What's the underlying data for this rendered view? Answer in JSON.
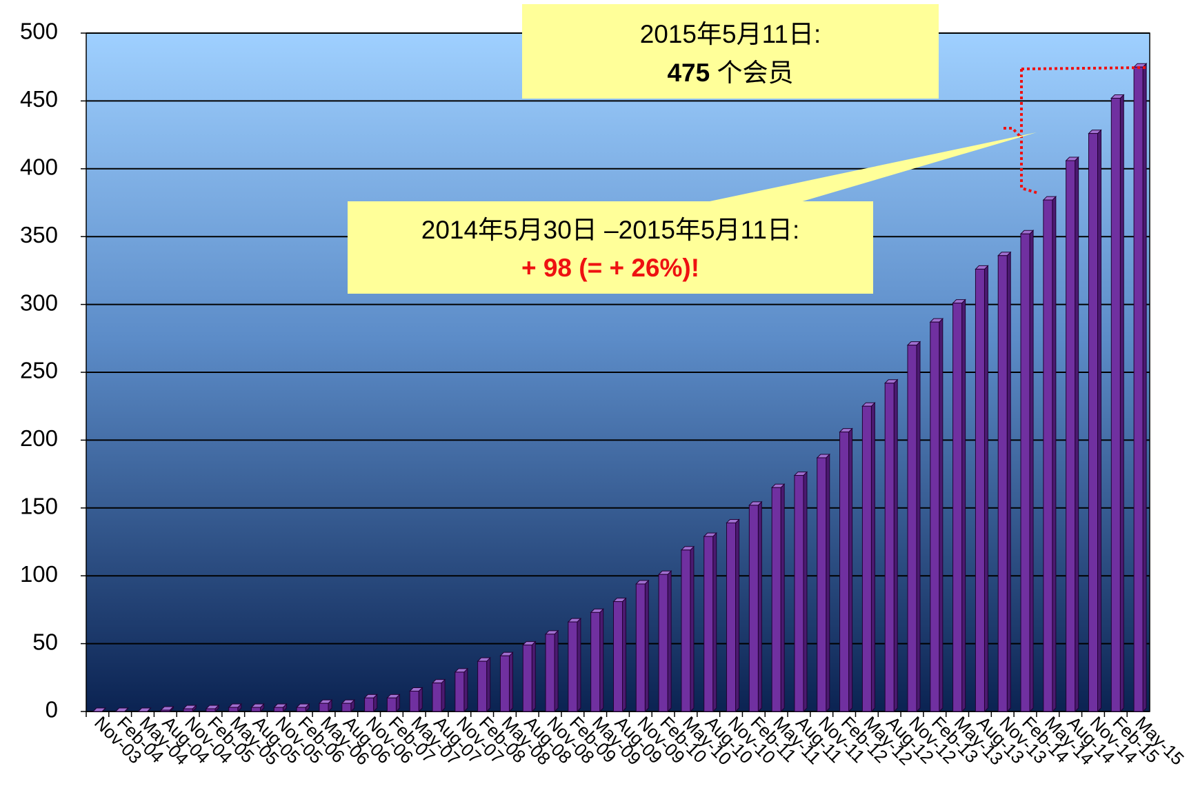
{
  "chart_data": {
    "type": "bar",
    "categories": [
      "Nov-03",
      "Feb-04",
      "May-04",
      "Aug-04",
      "Nov-04",
      "Feb-05",
      "May-05",
      "Aug-05",
      "Nov-05",
      "Feb-06",
      "May-06",
      "Aug-06",
      "Nov-06",
      "Feb-07",
      "May-07",
      "Aug-07",
      "Nov-07",
      "Feb-08",
      "May-08",
      "Aug-08",
      "Nov-08",
      "Feb-09",
      "May-09",
      "Aug-09",
      "Nov-09",
      "Feb-10",
      "May-10",
      "Aug-10",
      "Nov-10",
      "Feb-11",
      "May-11",
      "Aug-11",
      "Nov-11",
      "Feb-12",
      "May-12",
      "Aug-12",
      "Nov-12",
      "Feb-13",
      "May-13",
      "Aug-13",
      "Nov-13",
      "Feb-14",
      "May-14",
      "Aug-14",
      "Nov-14",
      "Feb-15",
      "May-15"
    ],
    "values": [
      0,
      0,
      0,
      1,
      2,
      2,
      3,
      3,
      3,
      3,
      6,
      6,
      10,
      10,
      15,
      21,
      29,
      37,
      41,
      49,
      57,
      66,
      73,
      81,
      94,
      101,
      119,
      129,
      139,
      152,
      165,
      174,
      187,
      206,
      225,
      242,
      270,
      287,
      301,
      326,
      336,
      352,
      377,
      406,
      426,
      452,
      475
    ],
    "color": "#7030a0",
    "ylim": [
      0,
      500
    ],
    "yticks": [
      0,
      50,
      100,
      150,
      200,
      250,
      300,
      350,
      400,
      450,
      500
    ],
    "grid": true,
    "annotations": [
      "2015年5月11日:",
      "475",
      "个会员",
      "2014年5月30日 –2015年5月11日:",
      "+ 98 (= + 26%)!"
    ]
  }
}
